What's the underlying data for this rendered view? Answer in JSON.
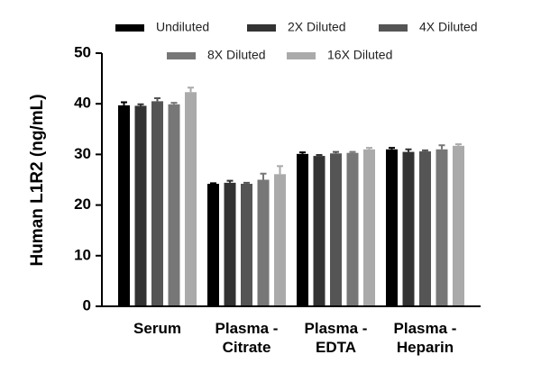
{
  "chart_data": {
    "type": "bar",
    "y_label": "Human L1R2 (ng/mL)",
    "categories": [
      "Serum",
      "Plasma - Citrate",
      "Plasma - EDTA",
      "Plasma - Heparin"
    ],
    "series": [
      {
        "name": "Undiluted",
        "color": "#000000",
        "values": [
          39.7,
          24.2,
          30.1,
          31.0
        ],
        "errors": [
          0.6,
          0.1,
          0.3,
          0.3
        ]
      },
      {
        "name": "2X Diluted",
        "color": "#333333",
        "values": [
          39.6,
          24.4,
          29.7,
          30.5
        ],
        "errors": [
          0.3,
          0.4,
          0.2,
          0.5
        ]
      },
      {
        "name": "4X Diluted",
        "color": "#555555",
        "values": [
          40.5,
          24.2,
          30.2,
          30.6
        ],
        "errors": [
          0.6,
          0.2,
          0.3,
          0.2
        ]
      },
      {
        "name": "8X Diluted",
        "color": "#777777",
        "values": [
          39.9,
          25.0,
          30.3,
          31.0
        ],
        "errors": [
          0.3,
          1.2,
          0.2,
          0.8
        ]
      },
      {
        "name": "16X Diluted",
        "color": "#aaaaaa",
        "values": [
          42.3,
          26.1,
          31.0,
          31.7
        ],
        "errors": [
          0.9,
          1.6,
          0.3,
          0.3
        ]
      }
    ],
    "ylim": [
      0,
      50
    ],
    "yticks": [
      0,
      10,
      20,
      30,
      40,
      50
    ]
  }
}
